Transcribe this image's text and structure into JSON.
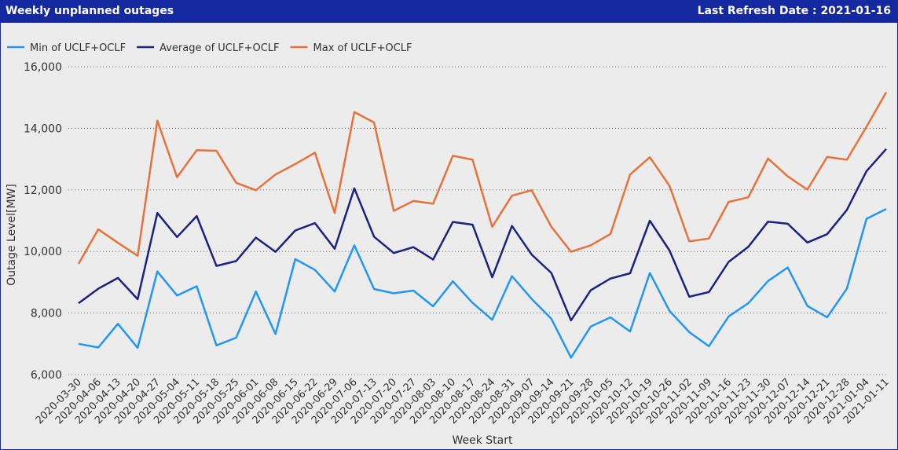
{
  "header": {
    "title": "Weekly unplanned outages",
    "refresh_label": "Last Refresh Date :",
    "refresh_date": "2021-01-16"
  },
  "chart_data": {
    "type": "line",
    "xlabel": "Week Start",
    "ylabel": "Outage Level[MW]",
    "ylim": [
      6000,
      16000
    ],
    "yticks": [
      "6,000",
      "8,000",
      "10,000",
      "12,000",
      "14,000",
      "16,000"
    ],
    "grid": true,
    "legend_position": "top-left",
    "categories": [
      "2020-03-30",
      "2020-04-06",
      "2020-04-13",
      "2020-04-20",
      "2020-04-27",
      "2020-05-04",
      "2020-05-11",
      "2020-05-18",
      "2020-05-25",
      "2020-06-01",
      "2020-06-08",
      "2020-06-15",
      "2020-06-22",
      "2020-06-29",
      "2020-07-06",
      "2020-07-13",
      "2020-07-20",
      "2020-07-27",
      "2020-08-03",
      "2020-08-10",
      "2020-08-17",
      "2020-08-24",
      "2020-08-31",
      "2020-09-07",
      "2020-09-14",
      "2020-09-21",
      "2020-09-28",
      "2020-10-05",
      "2020-10-12",
      "2020-10-19",
      "2020-10-26",
      "2020-11-02",
      "2020-11-09",
      "2020-11-16",
      "2020-11-23",
      "2020-11-30",
      "2020-12-07",
      "2020-12-14",
      "2020-12-21",
      "2020-12-28",
      "2021-01-04",
      "2021-01-11"
    ],
    "series": [
      {
        "name": "Min of UCLF+OCLF",
        "color": "#2196f3",
        "values": [
          7000,
          6880,
          7650,
          6870,
          9350,
          8570,
          8870,
          6950,
          7200,
          8700,
          7320,
          9750,
          9400,
          8700,
          10200,
          8780,
          8640,
          8730,
          8220,
          9030,
          8330,
          7780,
          9200,
          8460,
          7810,
          6550,
          7560,
          7860,
          7400,
          9300,
          8070,
          7380,
          6920,
          7890,
          8320,
          9040,
          9480,
          8230,
          7860,
          8790,
          11060,
          11380
        ]
      },
      {
        "name": "Average of UCLF+OCLF",
        "color": "#1a237e",
        "values": [
          8320,
          8790,
          9140,
          8450,
          11250,
          10470,
          11150,
          9530,
          9690,
          10450,
          9990,
          10680,
          10920,
          10090,
          12050,
          10480,
          9950,
          10140,
          9740,
          10960,
          10870,
          9160,
          10830,
          9900,
          9300,
          7760,
          8740,
          9120,
          9290,
          11000,
          10030,
          8530,
          8680,
          9660,
          10150,
          10970,
          10900,
          10290,
          10560,
          11350,
          12610,
          13330
        ]
      },
      {
        "name": "Max of UCLF+OCLF",
        "color": "#e5723b",
        "values": [
          9600,
          10720,
          10280,
          9860,
          14250,
          12410,
          13290,
          13270,
          12230,
          11990,
          12500,
          12840,
          13210,
          11250,
          14530,
          14190,
          11320,
          11640,
          11550,
          13110,
          12980,
          10800,
          11810,
          11990,
          10800,
          9990,
          10200,
          10570,
          12500,
          13060,
          12130,
          10330,
          10420,
          11610,
          11760,
          13020,
          12440,
          12010,
          13070,
          12980,
          14050,
          15170
        ]
      }
    ]
  }
}
